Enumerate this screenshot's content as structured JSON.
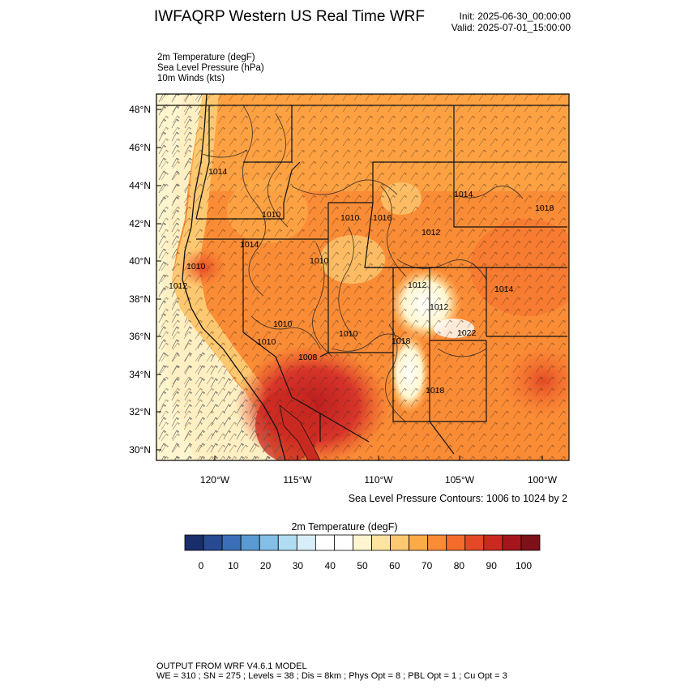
{
  "title": "IWFAQRP Western US Real Time WRF",
  "init": "Init: 2025-06-30_00:00:00",
  "valid": "Valid: 2025-07-01_15:00:00",
  "fields": [
    "2m Temperature   (degF)",
    "Sea Level Pressure   (hPa)",
    "10m Winds   (kts)"
  ],
  "lat_labels": [
    "48°N",
    "46°N",
    "44°N",
    "42°N",
    "40°N",
    "38°N",
    "36°N",
    "34°N",
    "32°N",
    "30°N"
  ],
  "lon_labels": [
    "120°W",
    "115°W",
    "110°W",
    "105°W",
    "100°W"
  ],
  "contour_labels": [
    "1014",
    "1010",
    "1014",
    "1010",
    "1014",
    "1010",
    "1012",
    "1010",
    "1010",
    "1018",
    "1012",
    "1010",
    "1008",
    "1010",
    "1018",
    "1022",
    "1012",
    "1018",
    "1016",
    "1012",
    "1014"
  ],
  "contour_note": "Sea Level Pressure Contours: 1006 to 1024 by 2",
  "colorbar": {
    "title": "2m Temperature  (degF)",
    "ticks": [
      "0",
      "10",
      "20",
      "30",
      "40",
      "50",
      "60",
      "70",
      "80",
      "90",
      "100"
    ],
    "colors": [
      "#1b2e6c",
      "#274a93",
      "#3b6fb8",
      "#5a9ad2",
      "#83bfe6",
      "#b0ddf3",
      "#d8eff9",
      "#ffffff",
      "#ffffff",
      "#fff6d0",
      "#fee3a1",
      "#fec870",
      "#fdaa48",
      "#fb8c36",
      "#f46c2b",
      "#e34926",
      "#c92a20",
      "#a5161c",
      "#801017"
    ]
  },
  "colors": {
    "ocean": "#fff0c4",
    "land_warm": "#fb8c36",
    "land_hot": "#d33a22",
    "mountain_cool": "#ffe7a8",
    "line": "#111111"
  },
  "footer": {
    "line1": "OUTPUT FROM WRF V4.6.1 MODEL",
    "line2": "WE = 310 ; SN = 275 ; Levels = 38 ; Dis = 8km ; Phys Opt = 8 ; PBL Opt = 1 ; Cu Opt = 3"
  }
}
